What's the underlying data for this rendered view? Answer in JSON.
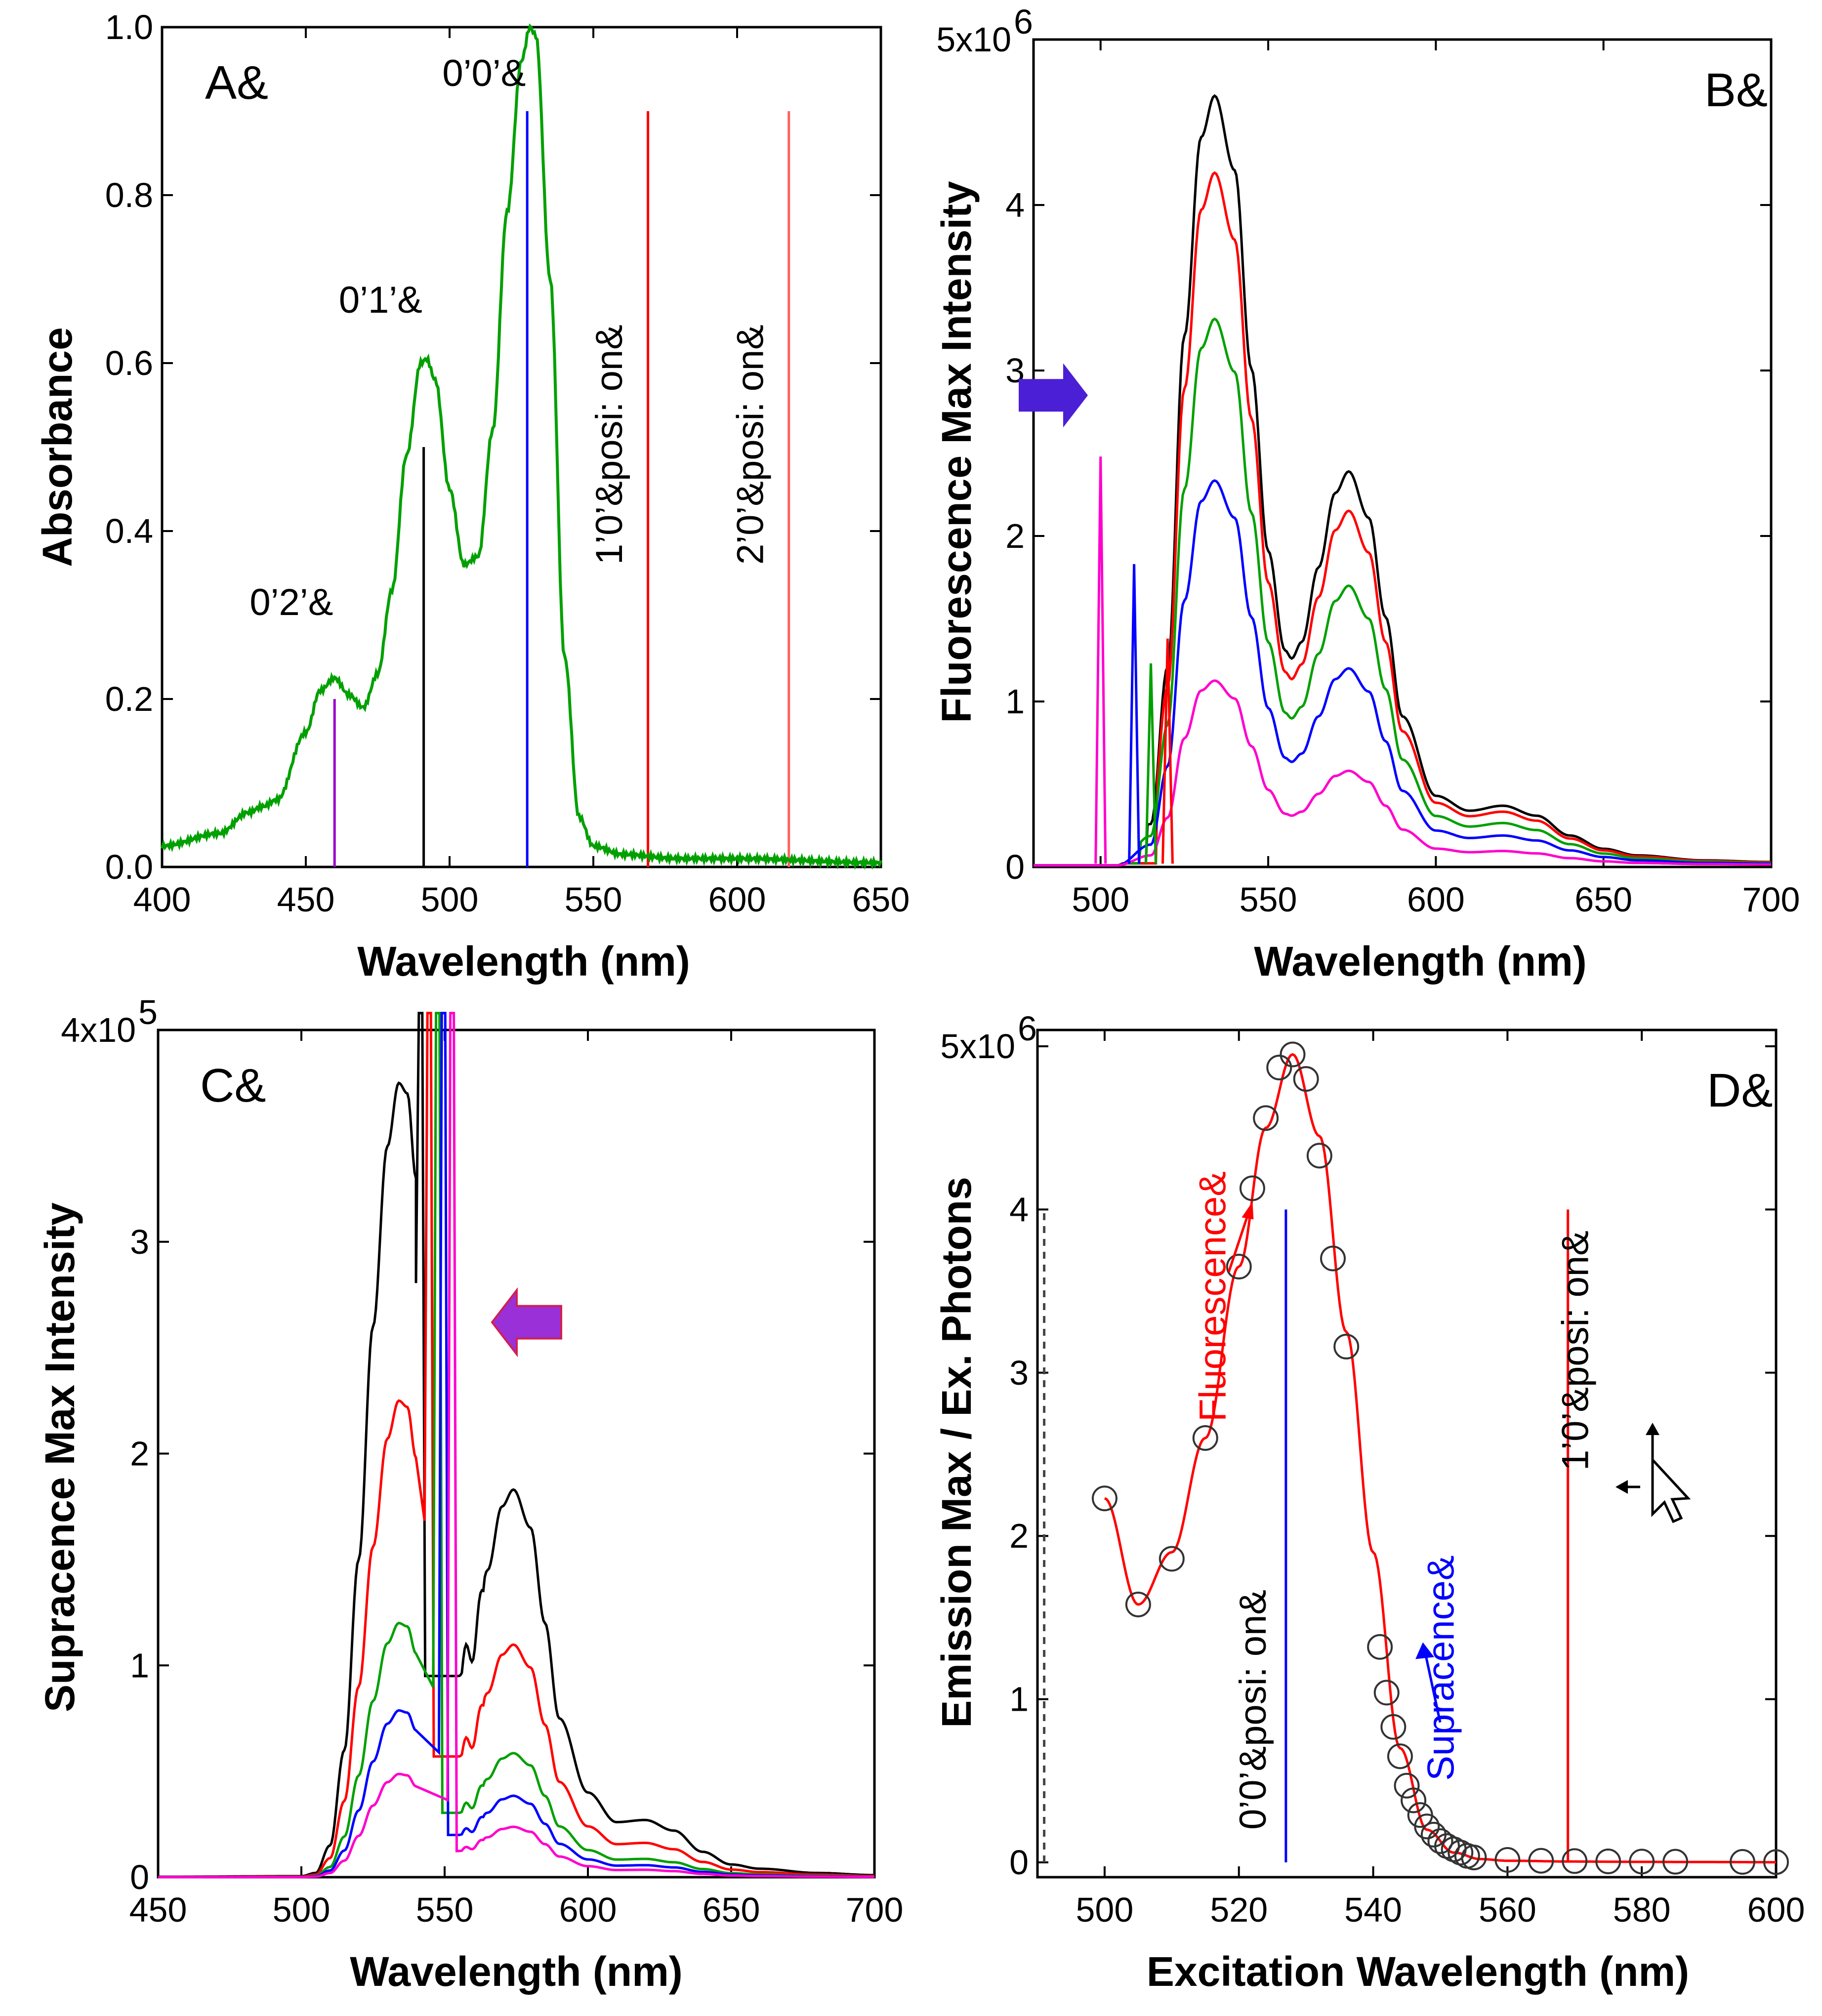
{
  "colors": {
    "green": "#00a000",
    "red": "#ff0000",
    "blue": "#0000ff",
    "magenta": "#ff00cc",
    "black": "#000000",
    "purple": "#9900cc",
    "light_red": "#ff6060",
    "arrow_blue": "#4b1fd6",
    "arrow_purple": "#9a30d8"
  },
  "chart_data": [
    {
      "id": "A",
      "type": "line",
      "panel_label": "A&",
      "xlabel": "Wavelength (nm)",
      "ylabel": "Absorbance",
      "xlim": [
        400,
        650
      ],
      "ylim": [
        0,
        1.0
      ],
      "xticks": [
        400,
        450,
        500,
        550,
        600,
        650
      ],
      "xtick_labels": [
        "400",
        "450",
        "500",
        "550",
        "600",
        "650"
      ],
      "yticks": [
        0,
        0.2,
        0.4,
        0.6,
        0.8,
        1.0
      ],
      "ytick_labels": [
        "0.0",
        "0.2",
        "0.4",
        "0.6",
        "0.8",
        "1.0"
      ],
      "series": [
        {
          "name": "absorbance",
          "color": "#00a000",
          "x": [
            400,
            420,
            430,
            435,
            440,
            450,
            455,
            460,
            465,
            470,
            475,
            480,
            485,
            490,
            492,
            495,
            500,
            505,
            510,
            515,
            520,
            525,
            528,
            530,
            535,
            540,
            545,
            550,
            560,
            580,
            600,
            650
          ],
          "y": [
            0.025,
            0.04,
            0.065,
            0.072,
            0.08,
            0.16,
            0.21,
            0.225,
            0.205,
            0.19,
            0.23,
            0.33,
            0.49,
            0.6,
            0.605,
            0.58,
            0.45,
            0.36,
            0.37,
            0.52,
            0.78,
            0.96,
            1.0,
            0.99,
            0.7,
            0.25,
            0.06,
            0.025,
            0.015,
            0.01,
            0.01,
            0.005
          ]
        }
      ],
      "vlines": [
        {
          "x": 460,
          "y0": 0,
          "y1": 0.2,
          "color": "#9900cc"
        },
        {
          "x": 491,
          "y0": 0,
          "y1": 0.5,
          "color": "#000000"
        },
        {
          "x": 527,
          "y0": 0,
          "y1": 0.9,
          "color": "#0000ff"
        },
        {
          "x": 569,
          "y0": 0,
          "y1": 0.9,
          "color": "#ff0000"
        },
        {
          "x": 618,
          "y0": 0,
          "y1": 0.9,
          "color": "#ff6060"
        }
      ],
      "annotations": [
        {
          "text": "0’0’&",
          "x": 512,
          "y": 0.93,
          "rotate": 0
        },
        {
          "text": "0’1’&",
          "x": 476,
          "y": 0.66,
          "rotate": 0
        },
        {
          "text": "0’2’&",
          "x": 445,
          "y": 0.3,
          "rotate": 0
        },
        {
          "text": "1’0’&posi: on&",
          "x": 560,
          "y": 0.36,
          "rotate": -90
        },
        {
          "text": "2’0’&posi: on&",
          "x": 609,
          "y": 0.36,
          "rotate": -90
        }
      ]
    },
    {
      "id": "B",
      "type": "line",
      "panel_label": "B&",
      "xlabel": "Wavelength (nm)",
      "ylabel": "Fluorescence Max Intensity",
      "xlim": [
        480,
        700
      ],
      "ylim": [
        0,
        5000000
      ],
      "xticks": [
        500,
        550,
        600,
        650,
        700
      ],
      "xtick_labels": [
        "500",
        "550",
        "600",
        "650",
        "700"
      ],
      "yticks": [
        0,
        1000000,
        2000000,
        3000000,
        4000000,
        5000000
      ],
      "ytick_labels": [
        "0",
        "1",
        "2",
        "3",
        "4",
        "5x10"
      ],
      "ytick_exponent": "6",
      "series": [
        {
          "name": "black",
          "color": "#000000",
          "start": 517,
          "scale": 1.0
        },
        {
          "name": "red",
          "color": "#ff0000",
          "start": 520,
          "scale": 0.9
        },
        {
          "name": "green",
          "color": "#00a000",
          "start": 515,
          "scale": 0.71
        },
        {
          "name": "blue",
          "color": "#0000ff",
          "start": 510,
          "scale": 0.5
        },
        {
          "name": "magenta",
          "color": "#ff00cc",
          "start": 500,
          "scale": 0.24
        }
      ],
      "base_shape": {
        "x": [
          505,
          515,
          520,
          525,
          530,
          534,
          540,
          545,
          550,
          555,
          557,
          560,
          565,
          570,
          574,
          580,
          585,
          590,
          600,
          610,
          620,
          630,
          640,
          650,
          660,
          680,
          700
        ],
        "y": [
          0.0,
          0.25,
          1.2,
          3.2,
          4.4,
          4.65,
          4.2,
          3.0,
          1.9,
          1.3,
          1.25,
          1.35,
          1.8,
          2.25,
          2.38,
          2.1,
          1.5,
          0.9,
          0.42,
          0.33,
          0.36,
          0.3,
          0.18,
          0.1,
          0.06,
          0.03,
          0.02
        ],
        "unit": 1000000
      },
      "scatter_peaks": [
        {
          "x": 500,
          "y": 2480000,
          "color": "#ff00cc"
        },
        {
          "x": 510,
          "y": 1830000,
          "color": "#0000ff"
        },
        {
          "x": 515,
          "y": 1230000,
          "color": "#00a000"
        },
        {
          "x": 520,
          "y": 1380000,
          "color": "#ff0000"
        }
      ],
      "arrow": {
        "direction": "right",
        "color": "#4b1fd6",
        "x": 494,
        "y": 2850000
      }
    },
    {
      "id": "C",
      "type": "line",
      "panel_label": "C&",
      "xlabel": "Wavelength (nm)",
      "ylabel": "Supracence Max Intensity",
      "xlim": [
        450,
        700
      ],
      "ylim": [
        0,
        400000
      ],
      "xticks": [
        450,
        500,
        550,
        600,
        650,
        700
      ],
      "xtick_labels": [
        "450",
        "500",
        "550",
        "600",
        "650",
        "700"
      ],
      "yticks": [
        0,
        100000,
        200000,
        300000,
        400000
      ],
      "ytick_labels": [
        "0",
        "1",
        "2",
        "3",
        "4x10"
      ],
      "ytick_exponent": "5",
      "series": [
        {
          "name": "black",
          "color": "#000000",
          "scale": 1.0,
          "spike": 541
        },
        {
          "name": "red",
          "color": "#ff0000",
          "scale": 0.6,
          "spike": 544
        },
        {
          "name": "green",
          "color": "#00a000",
          "scale": 0.32,
          "spike": 547
        },
        {
          "name": "blue",
          "color": "#0000ff",
          "scale": 0.21,
          "spike": 549
        },
        {
          "name": "magenta",
          "color": "#ff00cc",
          "scale": 0.13,
          "spike": 552
        }
      ],
      "base_shape": {
        "x": [
          450,
          500,
          505,
          510,
          515,
          520,
          525,
          530,
          534,
          537,
          540
        ],
        "y": [
          0.2,
          0.5,
          2,
          15,
          60,
          150,
          260,
          345,
          375,
          370,
          330
        ],
        "x2": [
          555,
          560,
          565,
          570,
          574,
          580,
          585,
          590,
          600,
          610,
          620,
          630,
          640,
          650,
          660,
          680,
          700
        ],
        "y2": [
          95,
          110,
          145,
          175,
          183,
          165,
          120,
          75,
          40,
          26,
          27,
          22,
          12,
          6,
          4,
          2,
          1
        ],
        "unit": 1000
      },
      "arrow": {
        "direction": "left",
        "color": "#9a30d8",
        "x": 570,
        "y": 262000
      }
    },
    {
      "id": "D",
      "type": "scatter",
      "panel_label": "D&",
      "xlabel": "Excitation Wavelength (nm)",
      "ylabel": "Emission Max / Ex. Photons",
      "xlim": [
        490,
        600
      ],
      "ylim": [
        0,
        5000000
      ],
      "xticks": [
        500,
        520,
        540,
        560,
        580,
        600
      ],
      "xtick_labels": [
        "500",
        "520",
        "540",
        "560",
        "580",
        "600"
      ],
      "yticks": [
        0,
        1000000,
        2000000,
        3000000,
        4000000,
        5000000
      ],
      "ytick_labels": [
        "0",
        "1",
        "2",
        "3",
        "4",
        "5x10"
      ],
      "ytick_exponent": "6",
      "points_x": [
        500,
        505,
        510,
        515,
        520,
        522,
        524,
        526,
        528,
        530,
        532,
        534,
        536,
        541,
        542,
        543,
        544,
        545,
        546,
        547,
        548,
        549,
        550,
        551,
        552,
        553,
        554,
        555,
        560,
        565,
        570,
        575,
        580,
        585,
        595,
        600
      ],
      "points_y": [
        2230000,
        1580000,
        1860000,
        2600000,
        3650000,
        4130000,
        4560000,
        4870000,
        4950000,
        4800000,
        4330000,
        3700000,
        3160000,
        1320000,
        1040000,
        830000,
        650000,
        470000,
        380000,
        290000,
        220000,
        170000,
        130000,
        100000,
        80000,
        60000,
        40000,
        30000,
        15000,
        10000,
        8000,
        6000,
        5000,
        4000,
        3000,
        2000
      ],
      "fit_x": [
        500,
        505,
        510,
        515,
        520,
        524,
        528,
        532,
        536,
        540,
        544,
        548,
        552,
        556,
        560,
        570,
        580,
        590,
        600
      ],
      "fit_y": [
        2230000,
        1580000,
        1900000,
        2600000,
        3650000,
        4500000,
        4950000,
        4450000,
        3250000,
        1900000,
        700000,
        200000,
        60000,
        20000,
        10000,
        5000,
        3000,
        2000,
        1000
      ],
      "vlines": [
        {
          "x": 527,
          "y0": 0,
          "y1": 4000000,
          "color": "#0000ff"
        },
        {
          "x": 569,
          "y0": 0,
          "y1": 4000000,
          "color": "#ff0000"
        },
        {
          "x": 491,
          "y0": 0,
          "y1": 4000000,
          "color": "#444444",
          "dashed": true
        }
      ],
      "annotations": [
        {
          "text": "Fluorescence&",
          "x": 518,
          "y": 2700000,
          "rotate": -90,
          "color": "#ff0000"
        },
        {
          "text": "Supracence&",
          "x": 552,
          "y": 500000,
          "rotate": -90,
          "color": "#0000ff"
        },
        {
          "text": "0’0’&posi: on&",
          "x": 524,
          "y": 200000,
          "rotate": -90,
          "color": "#000000"
        },
        {
          "text": "1’0’&posi: on&",
          "x": 572,
          "y": 2400000,
          "rotate": -90,
          "color": "#000000"
        }
      ]
    }
  ]
}
